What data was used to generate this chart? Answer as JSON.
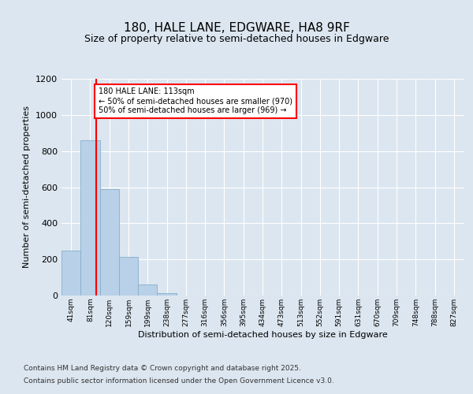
{
  "title1": "180, HALE LANE, EDGWARE, HA8 9RF",
  "title2": "Size of property relative to semi-detached houses in Edgware",
  "xlabel": "Distribution of semi-detached houses by size in Edgware",
  "ylabel": "Number of semi-detached properties",
  "bin_labels": [
    "41sqm",
    "81sqm",
    "120sqm",
    "159sqm",
    "199sqm",
    "238sqm",
    "277sqm",
    "316sqm",
    "356sqm",
    "395sqm",
    "434sqm",
    "473sqm",
    "513sqm",
    "552sqm",
    "591sqm",
    "631sqm",
    "670sqm",
    "709sqm",
    "748sqm",
    "788sqm",
    "827sqm"
  ],
  "bar_values": [
    250,
    860,
    590,
    215,
    60,
    15,
    0,
    0,
    0,
    0,
    0,
    0,
    0,
    0,
    0,
    0,
    0,
    0,
    0,
    0,
    0
  ],
  "bar_color": "#b8d0e8",
  "bar_edgecolor": "#88aeca",
  "vline_color": "red",
  "ylim": [
    0,
    1200
  ],
  "yticks": [
    0,
    200,
    400,
    600,
    800,
    1000,
    1200
  ],
  "annotation_title": "180 HALE LANE: 113sqm",
  "annotation_line1": "← 50% of semi-detached houses are smaller (970)",
  "annotation_line2": "50% of semi-detached houses are larger (969) →",
  "annotation_box_color": "white",
  "annotation_box_edgecolor": "red",
  "footer1": "Contains HM Land Registry data © Crown copyright and database right 2025.",
  "footer2": "Contains public sector information licensed under the Open Government Licence v3.0.",
  "bg_color": "#dce6f0",
  "plot_bg_color": "#dce6f0"
}
